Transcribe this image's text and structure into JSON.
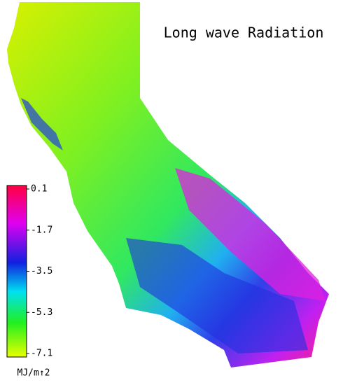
{
  "map": {
    "title": "Long wave Radiation",
    "legend": {
      "lim": [
        -7.1,
        0.1
      ],
      "ticks": [
        0.1,
        -1.7,
        -3.5,
        -5.3,
        -7.1
      ],
      "unit": "MJ/m↑2"
    }
  }
}
